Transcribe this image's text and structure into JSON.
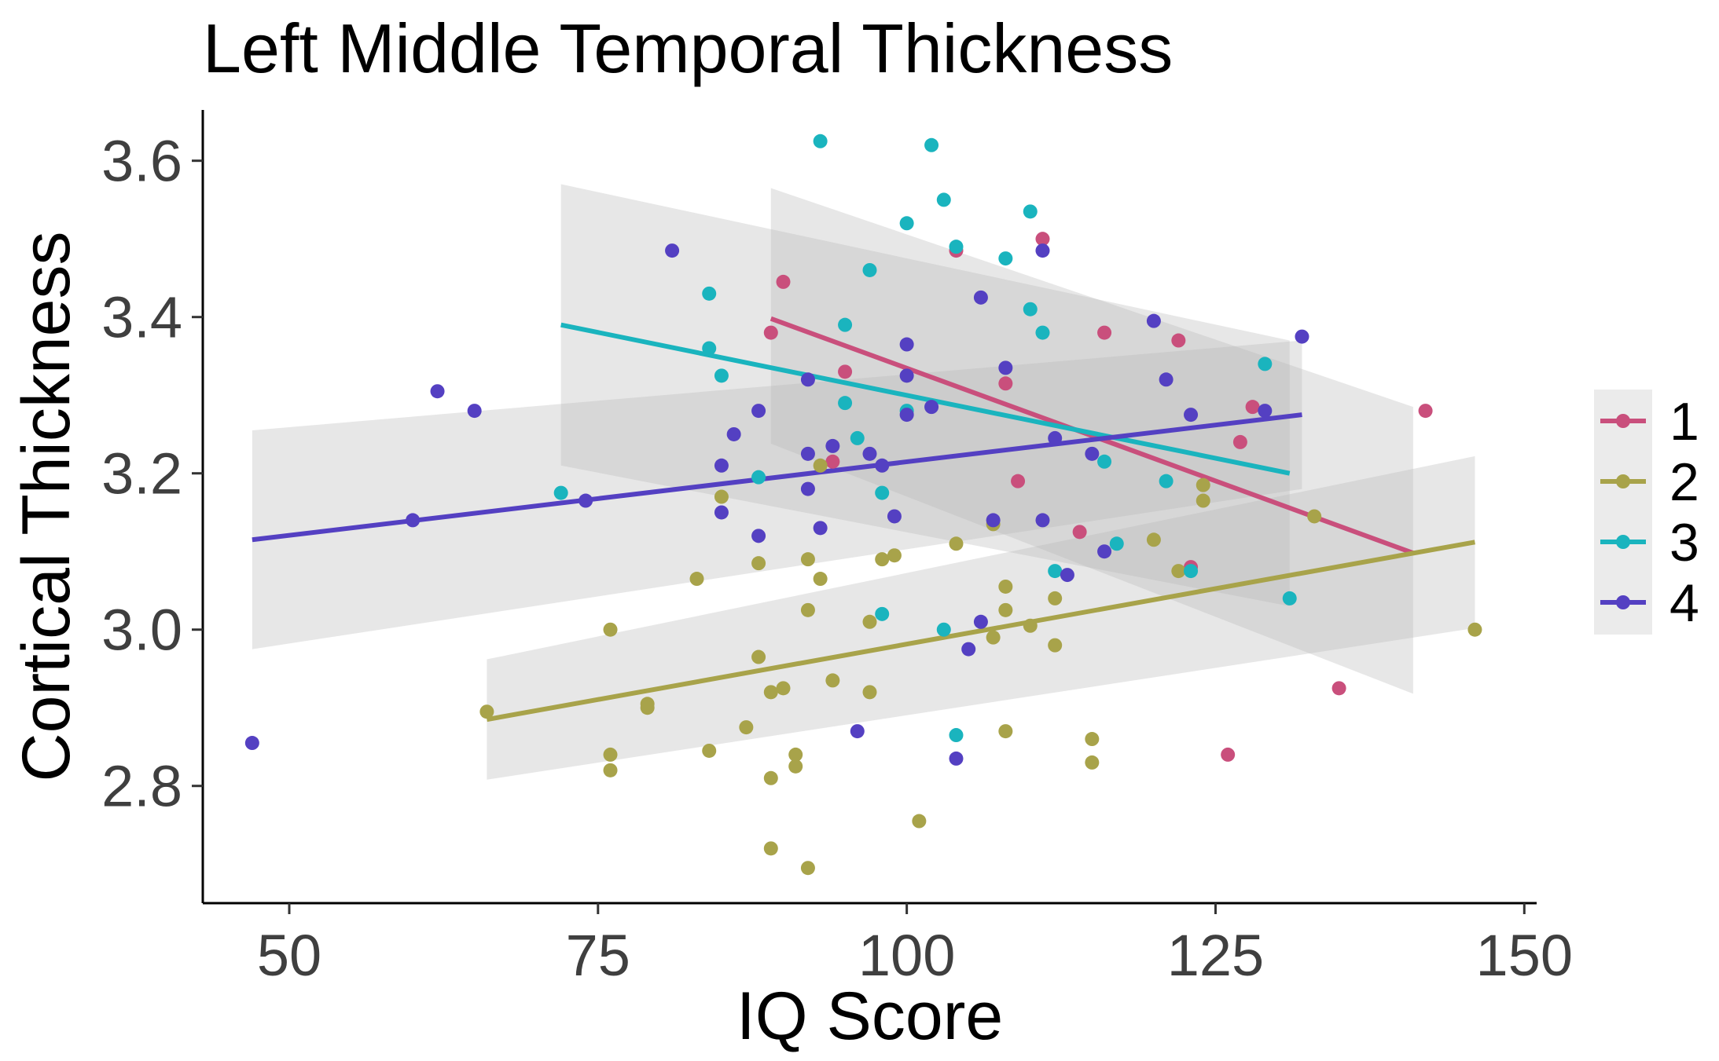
{
  "chart_data": {
    "type": "scatter",
    "title": "Left Middle Temporal Thickness",
    "xlabel": "IQ Score",
    "ylabel": "Cortical Thickness",
    "xlim": [
      43,
      151
    ],
    "ylim": [
      2.65,
      3.665
    ],
    "xticks": [
      50,
      75,
      100,
      125,
      150
    ],
    "yticks": [
      2.8,
      3.0,
      3.2,
      3.4,
      3.6
    ],
    "xtick_labels": [
      "50",
      "75",
      "100",
      "125",
      "150"
    ],
    "ytick_labels": [
      "2.8",
      "3.0",
      "3.2",
      "3.4",
      "3.6"
    ],
    "grid": false,
    "legend": "right",
    "confidence_band_color": "#b3b3b3",
    "series": [
      {
        "name": "1",
        "color": "#c94f7c",
        "points": [
          [
            90,
            3.445
          ],
          [
            89,
            3.38
          ],
          [
            95,
            3.33
          ],
          [
            104,
            3.485
          ],
          [
            111,
            3.5
          ],
          [
            116,
            3.38
          ],
          [
            122,
            3.37
          ],
          [
            108,
            3.315
          ],
          [
            94,
            3.215
          ],
          [
            109,
            3.19
          ],
          [
            114,
            3.125
          ],
          [
            123,
            3.08
          ],
          [
            128,
            3.285
          ],
          [
            127,
            3.24
          ],
          [
            142,
            3.28
          ],
          [
            135,
            2.925
          ],
          [
            126,
            2.84
          ]
        ],
        "fit": {
          "x": [
            89,
            141
          ],
          "y": [
            3.398,
            3.098
          ]
        },
        "band": {
          "x": [
            89,
            141
          ],
          "upper": [
            3.565,
            3.285
          ],
          "lower": [
            3.238,
            2.918
          ]
        }
      },
      {
        "name": "2",
        "color": "#a8a34a",
        "points": [
          [
            66,
            2.895
          ],
          [
            76,
            3.0
          ],
          [
            76,
            2.84
          ],
          [
            76,
            2.82
          ],
          [
            79,
            2.905
          ],
          [
            79,
            2.9
          ],
          [
            83,
            3.065
          ],
          [
            84,
            2.845
          ],
          [
            85,
            3.17
          ],
          [
            87,
            2.875
          ],
          [
            88,
            3.085
          ],
          [
            88,
            2.965
          ],
          [
            89,
            2.92
          ],
          [
            89,
            2.81
          ],
          [
            89,
            2.72
          ],
          [
            90,
            2.925
          ],
          [
            91,
            2.84
          ],
          [
            91,
            2.825
          ],
          [
            92,
            3.09
          ],
          [
            92,
            3.025
          ],
          [
            92,
            2.695
          ],
          [
            93,
            3.065
          ],
          [
            93,
            3.21
          ],
          [
            94,
            2.935
          ],
          [
            97,
            3.01
          ],
          [
            97,
            2.92
          ],
          [
            98,
            3.09
          ],
          [
            99,
            3.095
          ],
          [
            101,
            2.755
          ],
          [
            104,
            3.11
          ],
          [
            107,
            3.135
          ],
          [
            107,
            2.99
          ],
          [
            108,
            3.055
          ],
          [
            108,
            3.025
          ],
          [
            108,
            2.87
          ],
          [
            110,
            3.005
          ],
          [
            112,
            3.04
          ],
          [
            112,
            2.98
          ],
          [
            115,
            2.86
          ],
          [
            115,
            2.83
          ],
          [
            120,
            3.115
          ],
          [
            122,
            3.075
          ],
          [
            124,
            3.185
          ],
          [
            124,
            3.165
          ],
          [
            133,
            3.145
          ],
          [
            146,
            3.0
          ]
        ],
        "fit": {
          "x": [
            66,
            146
          ],
          "y": [
            2.885,
            3.112
          ]
        },
        "band": {
          "x": [
            66,
            146
          ],
          "upper": [
            2.962,
            3.222
          ],
          "lower": [
            2.808,
            3.002
          ]
        }
      },
      {
        "name": "3",
        "color": "#1ab4be",
        "points": [
          [
            93,
            3.625
          ],
          [
            102,
            3.62
          ],
          [
            103,
            3.55
          ],
          [
            110,
            3.535
          ],
          [
            100,
            3.52
          ],
          [
            104,
            3.49
          ],
          [
            108,
            3.475
          ],
          [
            97,
            3.46
          ],
          [
            84,
            3.43
          ],
          [
            110,
            3.41
          ],
          [
            95,
            3.39
          ],
          [
            111,
            3.38
          ],
          [
            84,
            3.36
          ],
          [
            85,
            3.325
          ],
          [
            129,
            3.34
          ],
          [
            95,
            3.29
          ],
          [
            100,
            3.28
          ],
          [
            96,
            3.245
          ],
          [
            72,
            3.175
          ],
          [
            88,
            3.195
          ],
          [
            98,
            3.175
          ],
          [
            116,
            3.215
          ],
          [
            121,
            3.19
          ],
          [
            112,
            3.075
          ],
          [
            117,
            3.11
          ],
          [
            123,
            3.075
          ],
          [
            131,
            3.04
          ],
          [
            98,
            3.02
          ],
          [
            103,
            3.0
          ],
          [
            104,
            2.865
          ]
        ],
        "fit": {
          "x": [
            72,
            131
          ],
          "y": [
            3.39,
            3.2
          ]
        },
        "band": {
          "x": [
            72,
            131
          ],
          "upper": [
            3.57,
            3.37
          ],
          "lower": [
            3.21,
            3.03
          ]
        }
      },
      {
        "name": "4",
        "color": "#5440c2",
        "points": [
          [
            47,
            2.855
          ],
          [
            60,
            3.14
          ],
          [
            62,
            3.305
          ],
          [
            65,
            3.28
          ],
          [
            74,
            3.165
          ],
          [
            81,
            3.485
          ],
          [
            85,
            3.21
          ],
          [
            85,
            3.15
          ],
          [
            86,
            3.25
          ],
          [
            88,
            3.28
          ],
          [
            88,
            3.12
          ],
          [
            92,
            3.32
          ],
          [
            92,
            3.225
          ],
          [
            92,
            3.18
          ],
          [
            93,
            3.13
          ],
          [
            94,
            3.235
          ],
          [
            96,
            2.87
          ],
          [
            97,
            3.225
          ],
          [
            98,
            3.21
          ],
          [
            99,
            3.145
          ],
          [
            100,
            3.365
          ],
          [
            100,
            3.325
          ],
          [
            100,
            3.275
          ],
          [
            102,
            3.285
          ],
          [
            105,
            2.975
          ],
          [
            104,
            2.835
          ],
          [
            106,
            3.425
          ],
          [
            106,
            3.01
          ],
          [
            107,
            3.14
          ],
          [
            108,
            3.335
          ],
          [
            111,
            3.485
          ],
          [
            111,
            3.14
          ],
          [
            112,
            3.245
          ],
          [
            113,
            3.07
          ],
          [
            115,
            3.225
          ],
          [
            116,
            3.1
          ],
          [
            120,
            3.395
          ],
          [
            121,
            3.32
          ],
          [
            123,
            3.275
          ],
          [
            129,
            3.28
          ],
          [
            132,
            3.375
          ]
        ],
        "fit": {
          "x": [
            47,
            132
          ],
          "y": [
            3.115,
            3.275
          ]
        },
        "band": {
          "x": [
            47,
            132
          ],
          "upper": [
            3.255,
            3.37
          ],
          "lower": [
            2.975,
            3.18
          ]
        }
      }
    ]
  }
}
